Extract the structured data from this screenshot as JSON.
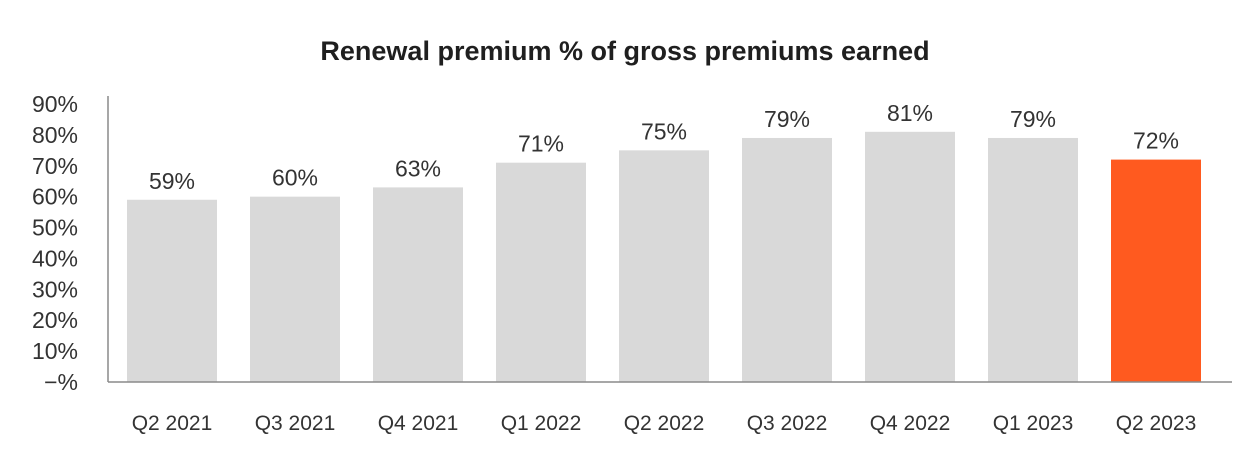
{
  "chart_data": {
    "type": "bar",
    "title": "Renewal premium % of gross premiums earned",
    "categories": [
      "Q2 2021",
      "Q3 2021",
      "Q4 2021",
      "Q1 2022",
      "Q2 2022",
      "Q3 2022",
      "Q4 2022",
      "Q1 2023",
      "Q2 2023"
    ],
    "values": [
      59,
      60,
      63,
      71,
      75,
      79,
      81,
      79,
      72
    ],
    "data_labels": [
      "59%",
      "60%",
      "63%",
      "71%",
      "75%",
      "79%",
      "81%",
      "79%",
      "72%"
    ],
    "y_ticks": [
      "−%",
      "10%",
      "20%",
      "30%",
      "40%",
      "50%",
      "60%",
      "70%",
      "80%",
      "90%"
    ],
    "y_tick_values": [
      0,
      10,
      20,
      30,
      40,
      50,
      60,
      70,
      80,
      90
    ],
    "ylim": [
      0,
      90
    ],
    "xlabel": "",
    "ylabel": "",
    "grid": false,
    "legend": "none",
    "colors": {
      "bar": "#d9d9d9",
      "highlight": "#ff5a1f",
      "highlight_index": 8,
      "axis": "#8a8a8a"
    }
  }
}
